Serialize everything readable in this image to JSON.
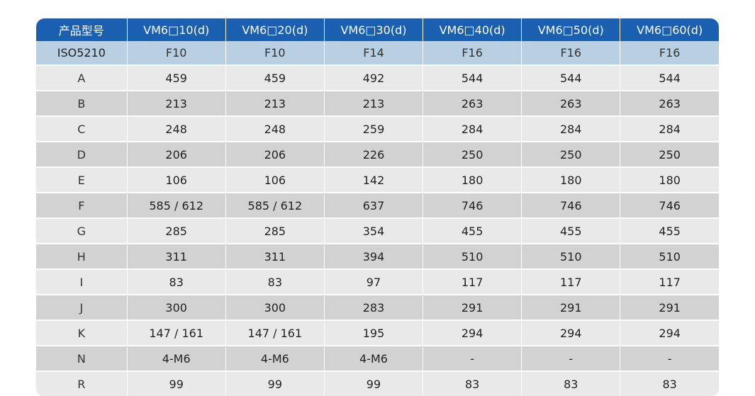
{
  "header": [
    "产品型号",
    "VM6□10(d)",
    "VM6□20(d)",
    "VM6□30(d)",
    "VM6□40(d)",
    "VM6□50(d)",
    "VM6□60(d)"
  ],
  "iso_row": {
    "label": "ISO5210",
    "values": [
      "F10",
      "F10",
      "F14",
      "F16",
      "F16",
      "F16"
    ]
  },
  "rows": [
    {
      "label": "A",
      "values": [
        "459",
        "459",
        "492",
        "544",
        "544",
        "544"
      ]
    },
    {
      "label": "B",
      "values": [
        "213",
        "213",
        "213",
        "263",
        "263",
        "263"
      ]
    },
    {
      "label": "C",
      "values": [
        "248",
        "248",
        "259",
        "284",
        "284",
        "284"
      ]
    },
    {
      "label": "D",
      "values": [
        "206",
        "206",
        "226",
        "250",
        "250",
        "250"
      ]
    },
    {
      "label": "E",
      "values": [
        "106",
        "106",
        "142",
        "180",
        "180",
        "180"
      ]
    },
    {
      "label": "F",
      "values": [
        "585 / 612",
        "585 / 612",
        "637",
        "746",
        "746",
        "746"
      ]
    },
    {
      "label": "G",
      "values": [
        "285",
        "285",
        "354",
        "455",
        "455",
        "455"
      ]
    },
    {
      "label": "H",
      "values": [
        "311",
        "311",
        "394",
        "510",
        "510",
        "510"
      ]
    },
    {
      "label": "I",
      "values": [
        "83",
        "83",
        "97",
        "117",
        "117",
        "117"
      ]
    },
    {
      "label": "J",
      "values": [
        "300",
        "300",
        "283",
        "291",
        "291",
        "291"
      ]
    },
    {
      "label": "K",
      "values": [
        "147 / 161",
        "147 / 161",
        "195",
        "294",
        "294",
        "294"
      ]
    },
    {
      "label": "N",
      "values": [
        "4-M6",
        "4-M6",
        "4-M6",
        "-",
        "-",
        "-"
      ]
    },
    {
      "label": "R",
      "values": [
        "99",
        "99",
        "99",
        "83",
        "83",
        "83"
      ]
    }
  ]
}
